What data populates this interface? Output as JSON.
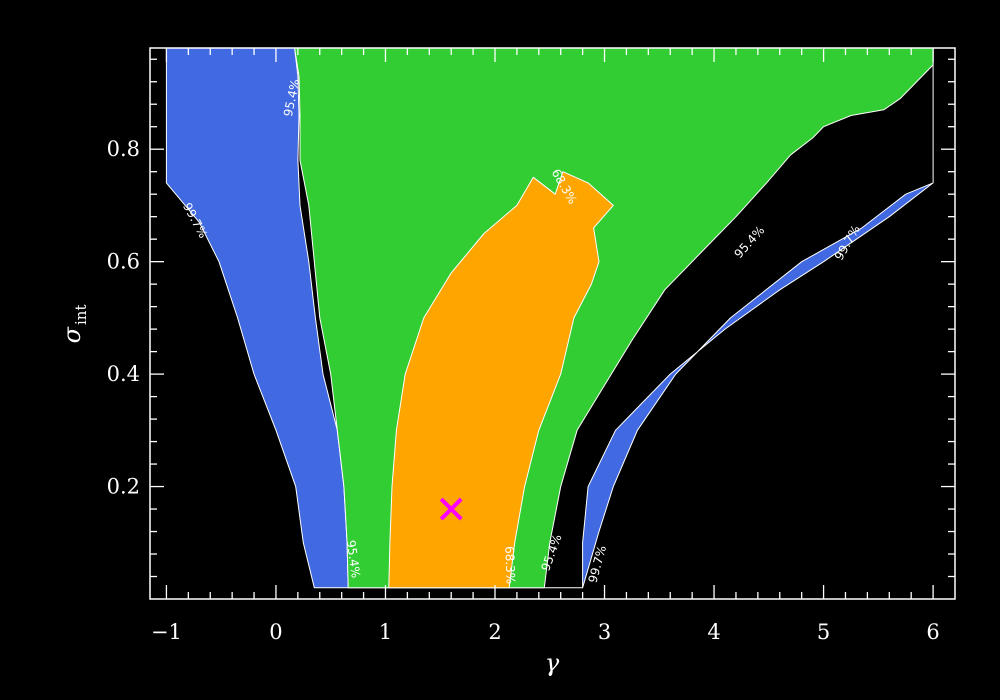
{
  "chart_data": {
    "type": "contour",
    "title": "",
    "xlabel": "γ",
    "ylabel_main": "σ",
    "ylabel_sub": "int",
    "xlim": [
      -1.15,
      6.2
    ],
    "ylim": [
      0.0,
      0.98
    ],
    "x_ticks": [
      -1,
      0,
      1,
      2,
      3,
      4,
      5,
      6
    ],
    "y_ticks": [
      0.2,
      0.4,
      0.6,
      0.8
    ],
    "x_tick_labels": [
      "−1",
      "0",
      "1",
      "2",
      "3",
      "4",
      "5",
      "6"
    ],
    "y_tick_labels": [
      "0.2",
      "0.4",
      "0.6",
      "0.8"
    ],
    "background": "#000000",
    "grid_extent": {
      "x": [
        -1.0,
        6.0
      ],
      "y": [
        0.02,
        0.98
      ]
    },
    "levels": [
      {
        "label": "99.7%",
        "color": "#4169E1",
        "boundary": [
          [
            -1.0,
            0.98
          ],
          [
            0.17,
            0.98
          ],
          [
            0.2,
            0.93
          ],
          [
            0.21,
            0.86
          ],
          [
            0.2,
            0.78
          ],
          [
            0.22,
            0.7
          ],
          [
            0.3,
            0.6
          ],
          [
            0.36,
            0.5
          ],
          [
            0.43,
            0.4
          ],
          [
            0.56,
            0.3
          ],
          [
            0.62,
            0.2
          ],
          [
            0.65,
            0.1
          ],
          [
            0.66,
            0.02
          ],
          [
            2.8,
            0.02
          ],
          [
            2.95,
            0.12
          ],
          [
            3.08,
            0.2
          ],
          [
            3.3,
            0.3
          ],
          [
            3.65,
            0.4
          ],
          [
            4.15,
            0.5
          ],
          [
            4.8,
            0.6
          ],
          [
            5.35,
            0.66
          ],
          [
            5.75,
            0.72
          ],
          [
            6.0,
            0.74
          ],
          [
            6.0,
            0.98
          ],
          [
            6.0,
            0.74
          ],
          [
            5.6,
            0.68
          ],
          [
            5.3,
            0.64
          ],
          [
            5.0,
            0.6
          ],
          [
            4.6,
            0.55
          ],
          [
            4.1,
            0.48
          ],
          [
            3.6,
            0.4
          ],
          [
            3.1,
            0.3
          ],
          [
            2.85,
            0.2
          ],
          [
            2.8,
            0.1
          ],
          [
            2.8,
            0.02
          ],
          [
            0.35,
            0.02
          ],
          [
            0.25,
            0.1
          ],
          [
            0.18,
            0.2
          ],
          [
            0.0,
            0.3
          ],
          [
            -0.2,
            0.4
          ],
          [
            -0.35,
            0.5
          ],
          [
            -0.52,
            0.6
          ],
          [
            -0.7,
            0.67
          ],
          [
            -1.0,
            0.74
          ]
        ]
      },
      {
        "label": "95.4%",
        "color": "#32CD32",
        "boundary": [
          [
            0.17,
            0.98
          ],
          [
            6.0,
            0.98
          ],
          [
            6.0,
            0.95
          ],
          [
            5.7,
            0.89
          ],
          [
            5.55,
            0.87
          ],
          [
            5.25,
            0.86
          ],
          [
            5.0,
            0.84
          ],
          [
            4.9,
            0.82
          ],
          [
            4.7,
            0.79
          ],
          [
            4.48,
            0.74
          ],
          [
            4.2,
            0.68
          ],
          [
            3.9,
            0.62
          ],
          [
            3.55,
            0.55
          ],
          [
            3.25,
            0.46
          ],
          [
            3.0,
            0.38
          ],
          [
            2.75,
            0.3
          ],
          [
            2.6,
            0.2
          ],
          [
            2.5,
            0.1
          ],
          [
            2.45,
            0.02
          ],
          [
            0.66,
            0.02
          ],
          [
            0.65,
            0.1
          ],
          [
            0.62,
            0.2
          ],
          [
            0.56,
            0.3
          ],
          [
            0.5,
            0.4
          ],
          [
            0.4,
            0.5
          ],
          [
            0.35,
            0.6
          ],
          [
            0.3,
            0.7
          ],
          [
            0.22,
            0.78
          ],
          [
            0.22,
            0.86
          ],
          [
            0.21,
            0.93
          ]
        ]
      },
      {
        "label": "68.3%",
        "color": "#FFA500",
        "boundary": [
          [
            1.03,
            0.02
          ],
          [
            2.13,
            0.02
          ],
          [
            2.18,
            0.1
          ],
          [
            2.27,
            0.2
          ],
          [
            2.4,
            0.3
          ],
          [
            2.6,
            0.4
          ],
          [
            2.72,
            0.5
          ],
          [
            2.88,
            0.56
          ],
          [
            2.95,
            0.6
          ],
          [
            2.9,
            0.66
          ],
          [
            3.08,
            0.7
          ],
          [
            2.85,
            0.74
          ],
          [
            2.62,
            0.76
          ],
          [
            2.55,
            0.72
          ],
          [
            2.35,
            0.75
          ],
          [
            2.2,
            0.7
          ],
          [
            1.9,
            0.65
          ],
          [
            1.6,
            0.58
          ],
          [
            1.35,
            0.5
          ],
          [
            1.18,
            0.4
          ],
          [
            1.1,
            0.3
          ],
          [
            1.06,
            0.2
          ],
          [
            1.04,
            0.1
          ]
        ]
      }
    ],
    "contour_labels": [
      {
        "text": "99.7%",
        "x": -0.77,
        "y": 0.67,
        "angle": 62
      },
      {
        "text": "95.4%",
        "x": 0.18,
        "y": 0.89,
        "angle": -78
      },
      {
        "text": "95.4%",
        "x": 0.67,
        "y": 0.07,
        "angle": 82
      },
      {
        "text": "68.3%",
        "x": 2.6,
        "y": 0.73,
        "angle": 60
      },
      {
        "text": "68.3%",
        "x": 2.1,
        "y": 0.06,
        "angle": 88
      },
      {
        "text": "95.4%",
        "x": 2.55,
        "y": 0.08,
        "angle": -70
      },
      {
        "text": "99.7%",
        "x": 2.97,
        "y": 0.06,
        "angle": -75
      },
      {
        "text": "95.4%",
        "x": 4.35,
        "y": 0.63,
        "angle": -48
      },
      {
        "text": "99.7%",
        "x": 5.25,
        "y": 0.63,
        "angle": -60
      }
    ],
    "best_fit": {
      "x": 1.6,
      "y": 0.16,
      "marker": "x",
      "color": "#FF00FF"
    }
  }
}
